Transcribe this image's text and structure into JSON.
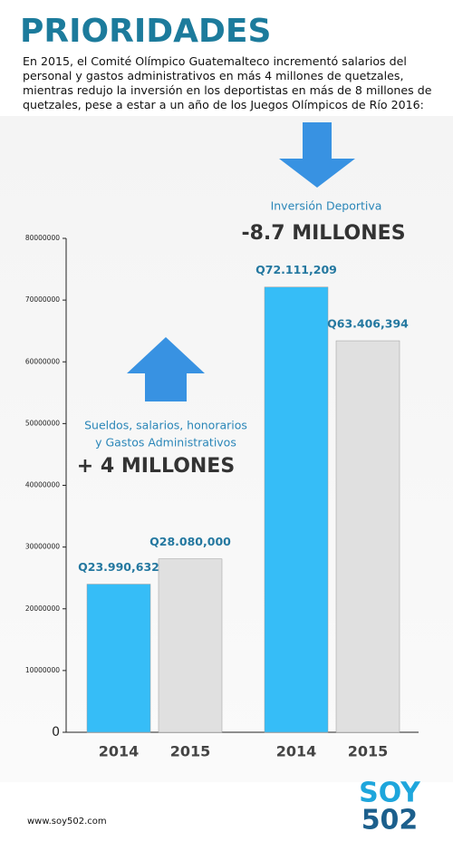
{
  "chart_data": {
    "type": "bar",
    "title": "PRIORIDADES",
    "subtitle": "En 2015, el Comité Olímpico Guatemalteco incrementó salarios del personal y gastos administrativos en más 4 millones de quetzales, mientras redujo la inversión en los deportistas en más de 8 millones de quetzales, pese a estar a un año de los Juegos Olímpicos de Río 2016:",
    "categories": [
      "2014",
      "2015",
      "2014",
      "2015"
    ],
    "values": [
      23990632,
      28080000,
      72111209,
      63406394
    ],
    "value_labels": [
      "Q23.990,632",
      "Q28.080,000",
      "Q72.111,209",
      "Q63.406,394"
    ],
    "colors": [
      "#36bdf7",
      "#e0e0e0",
      "#36bdf7",
      "#e0e0e0"
    ],
    "ylim": [
      0,
      80000000
    ],
    "yticks": [
      0,
      10000000,
      20000000,
      30000000,
      40000000,
      50000000,
      60000000,
      70000000,
      80000000
    ],
    "annotations": [
      "Sueldos, salarios, honorarios",
      "y Gastos Administrativos",
      "+ 4 MILLONES",
      "Inversión Deportiva",
      "-8.7 MILLONES"
    ]
  },
  "footer": {
    "source": "www.soy502.com",
    "logo": [
      "SOY",
      "502"
    ]
  }
}
